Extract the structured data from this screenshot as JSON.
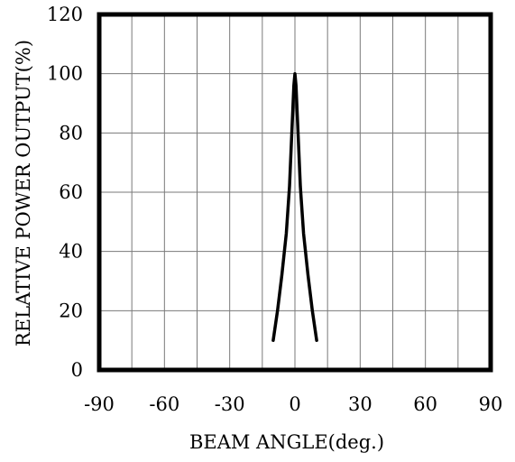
{
  "chart_data": {
    "type": "line",
    "title": "",
    "xlabel": "BEAM ANGLE(deg.)",
    "ylabel": "RELATIVE POWER OUTPUT(%)",
    "xlim": [
      -90,
      90
    ],
    "ylim": [
      0,
      120
    ],
    "xticks": [
      -90,
      -60,
      -30,
      0,
      30,
      60,
      90
    ],
    "yticks": [
      0,
      20,
      40,
      60,
      80,
      100,
      120
    ],
    "xtick_labels": [
      "-90",
      "-60",
      "-30",
      "0",
      "30",
      "60",
      "90"
    ],
    "ytick_labels": [
      "0",
      "20",
      "40",
      "60",
      "80",
      "100",
      "120"
    ],
    "grid": true,
    "legend": "none",
    "series": [
      {
        "x": [
          -10,
          -8,
          -6,
          -4,
          -2.5,
          -1.5,
          -0.5,
          0,
          0.5,
          1.5,
          2.5,
          4,
          6,
          8,
          10
        ],
        "y": [
          10,
          20,
          32,
          46,
          62,
          79,
          96,
          100,
          96,
          79,
          62,
          46,
          32,
          20,
          10
        ],
        "color": "#000000"
      }
    ]
  }
}
